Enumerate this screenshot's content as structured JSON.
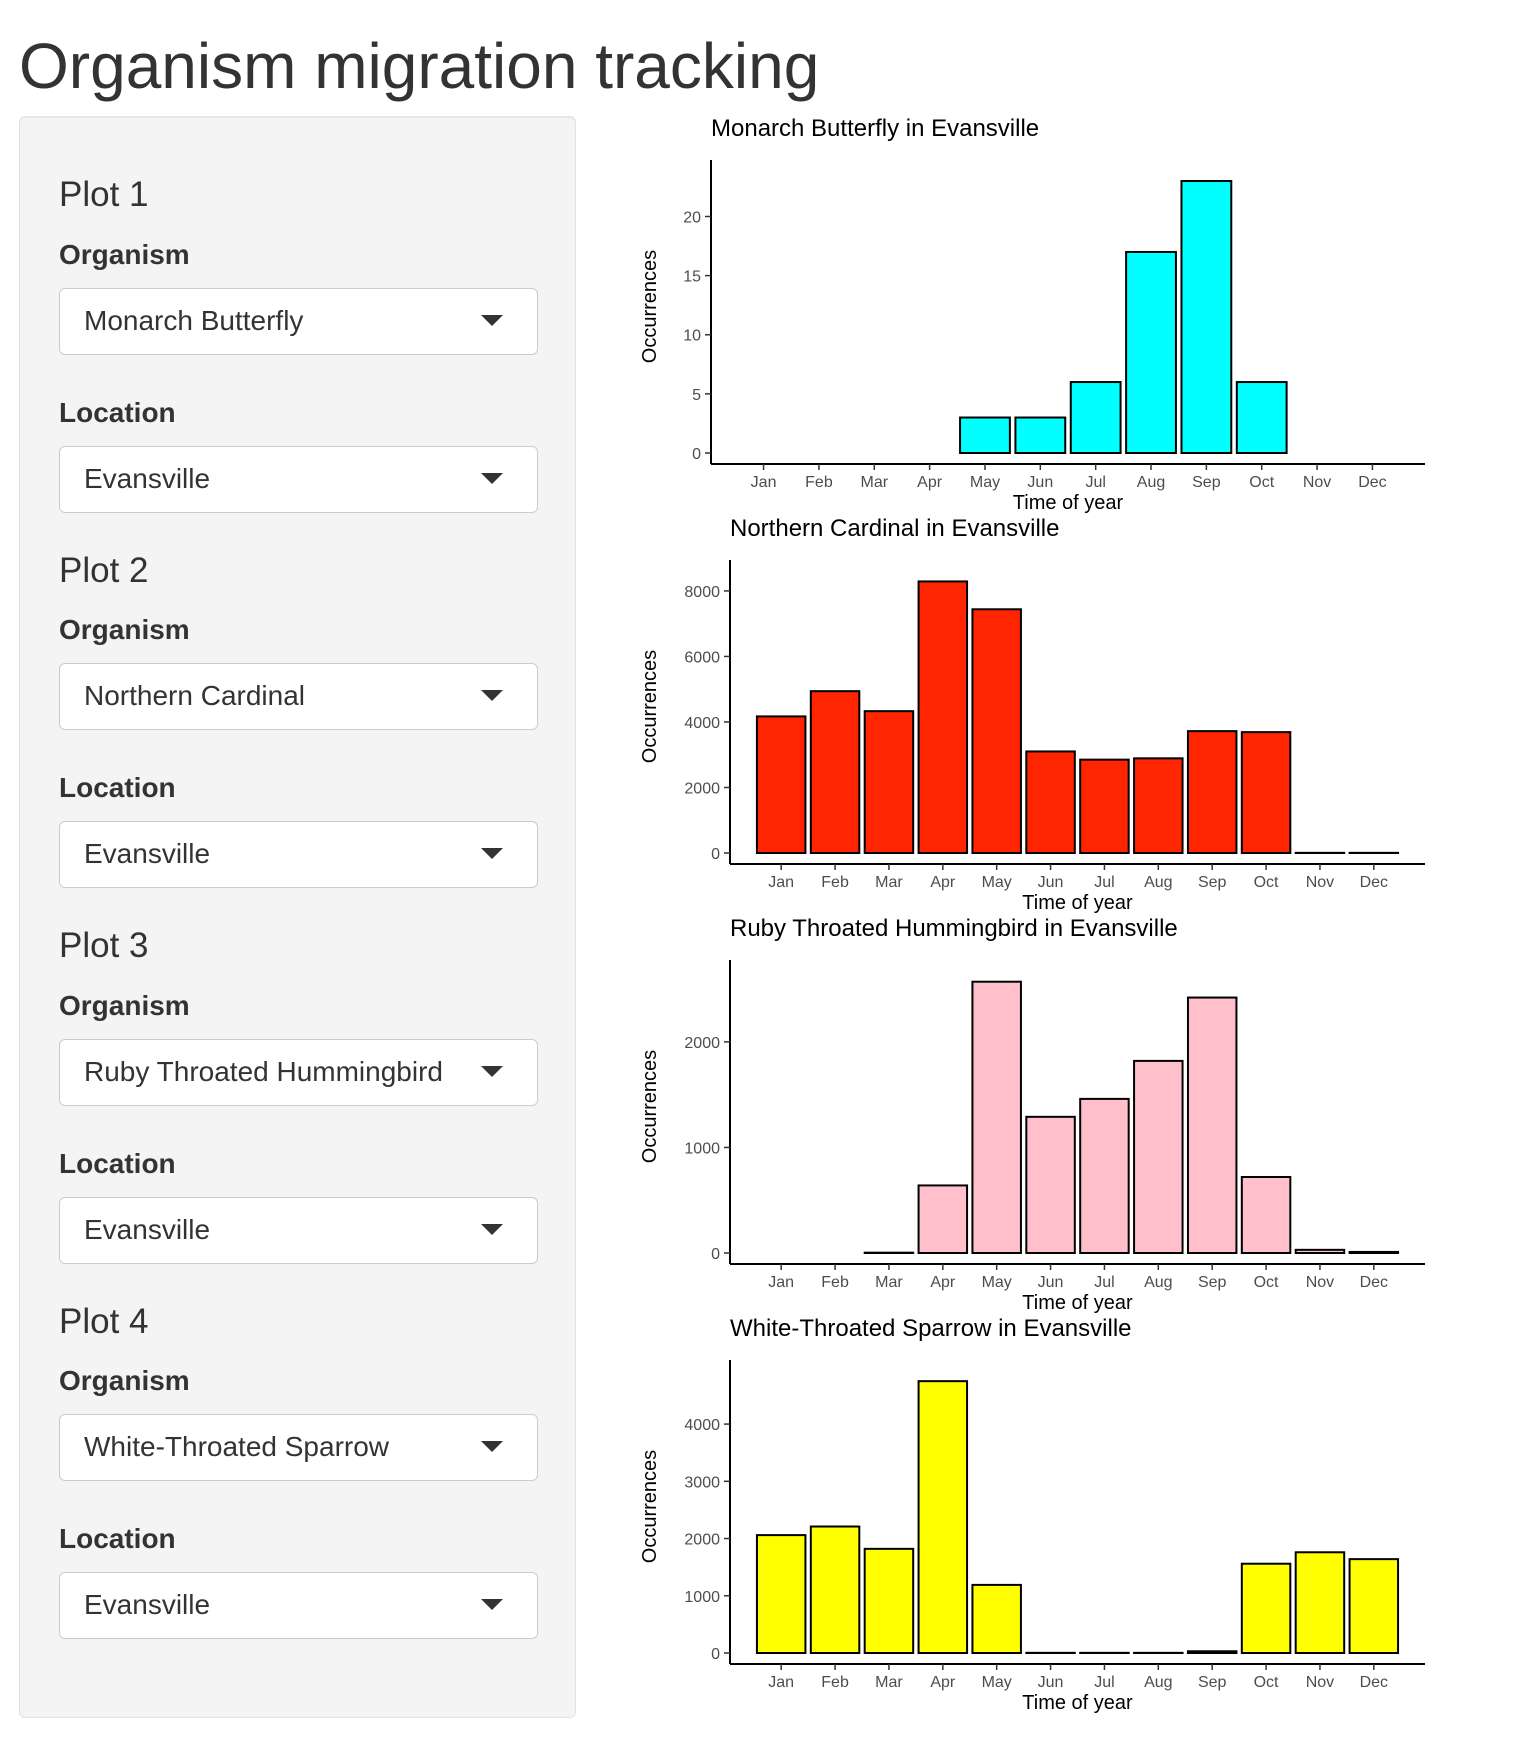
{
  "app": {
    "title": "Organism migration tracking"
  },
  "sidebar": {
    "plots": [
      {
        "heading": "Plot 1",
        "organism_label": "Organism",
        "organism_value": "Monarch Butterfly",
        "location_label": "Location",
        "location_value": "Evansville"
      },
      {
        "heading": "Plot 2",
        "organism_label": "Organism",
        "organism_value": "Northern Cardinal",
        "location_label": "Location",
        "location_value": "Evansville"
      },
      {
        "heading": "Plot 3",
        "organism_label": "Organism",
        "organism_value": "Ruby Throated Hummingbird",
        "location_label": "Location",
        "location_value": "Evansville"
      },
      {
        "heading": "Plot 4",
        "organism_label": "Organism",
        "organism_value": "White-Throated Sparrow",
        "location_label": "Location",
        "location_value": "Evansville"
      }
    ]
  },
  "chart_data": [
    {
      "type": "bar",
      "title": "Monarch Butterfly in Evansville",
      "xlabel": "Time of year",
      "ylabel": "Occurrences",
      "categories": [
        "Jan",
        "Feb",
        "Mar",
        "Apr",
        "May",
        "Jun",
        "Jul",
        "Aug",
        "Sep",
        "Oct",
        "Nov",
        "Dec"
      ],
      "values": [
        0,
        0,
        0,
        0,
        3,
        3,
        6,
        17,
        23,
        6,
        0,
        0
      ],
      "yticks": [
        0,
        5,
        10,
        15,
        20
      ],
      "ylim": [
        0,
        24.1
      ],
      "color": "#00FFFF",
      "grid": false
    },
    {
      "type": "bar",
      "title": "Northern Cardinal in Evansville",
      "xlabel": "Time of year",
      "ylabel": "Occurrences",
      "categories": [
        "Jan",
        "Feb",
        "Mar",
        "Apr",
        "May",
        "Jun",
        "Jul",
        "Aug",
        "Sep",
        "Oct",
        "Nov",
        "Dec"
      ],
      "values": [
        4170,
        4940,
        4330,
        8290,
        7440,
        3100,
        2850,
        2890,
        3720,
        3690,
        5,
        5
      ],
      "yticks": [
        0,
        2000,
        4000,
        6000,
        8000
      ],
      "ylim": [
        0,
        8700
      ],
      "color": "#FF2500",
      "grid": false
    },
    {
      "type": "bar",
      "title": "Ruby Throated Hummingbird in Evansville",
      "xlabel": "Time of year",
      "ylabel": "Occurrences",
      "categories": [
        "Jan",
        "Feb",
        "Mar",
        "Apr",
        "May",
        "Jun",
        "Jul",
        "Aug",
        "Sep",
        "Oct",
        "Nov",
        "Dec"
      ],
      "values": [
        0,
        0,
        3,
        640,
        2570,
        1290,
        1460,
        1820,
        2420,
        720,
        30,
        10
      ],
      "yticks": [
        0,
        1000,
        2000
      ],
      "ylim": [
        0,
        2700
      ],
      "color": "#FFC0CB",
      "grid": false
    },
    {
      "type": "bar",
      "title": "White-Throated Sparrow in Evansville",
      "xlabel": "Time of year",
      "ylabel": "Occurrences",
      "categories": [
        "Jan",
        "Feb",
        "Mar",
        "Apr",
        "May",
        "Jun",
        "Jul",
        "Aug",
        "Sep",
        "Oct",
        "Nov",
        "Dec"
      ],
      "values": [
        2060,
        2210,
        1820,
        4750,
        1190,
        3,
        3,
        3,
        30,
        1560,
        1760,
        1640
      ],
      "yticks": [
        0,
        1000,
        2000,
        3000,
        4000
      ],
      "ylim": [
        0,
        4980
      ],
      "color": "#FFFF00",
      "grid": false
    }
  ]
}
